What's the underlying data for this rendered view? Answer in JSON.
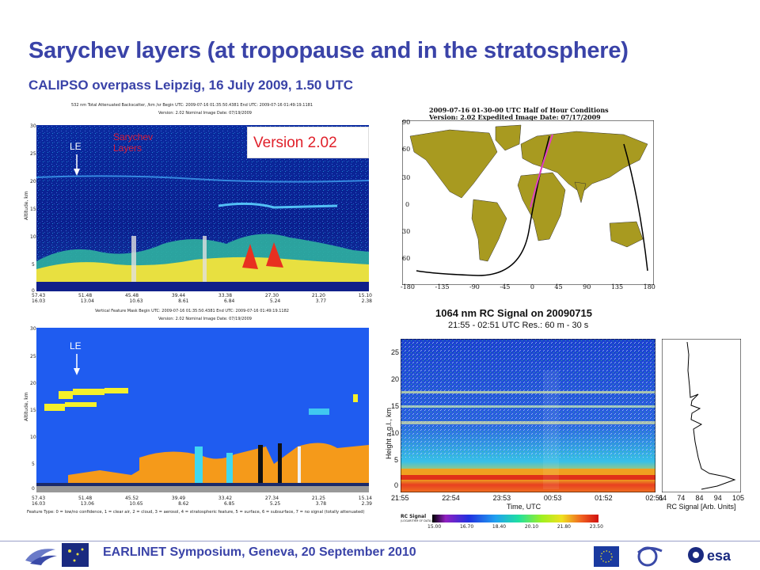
{
  "slide": {
    "title": "Sarychev layers (at tropopause and in the stratosphere)",
    "subtitle": "CALIPSO overpass Leipzig, 16 July 2009, 1.50 UTC",
    "footer": "EARLINET Symposium, Geneva, 20 September 2010"
  },
  "panel_backscatter": {
    "header1": "532 nm Total Attenuated Backscatter, /km /sr   Begin UTC: 2009-07-16 01:35:50.4381   End UTC: 2009-07-16 01:49:19.1181",
    "header2": "Version: 2.02 Nominal   Image Date: 07/19/2009",
    "le_label": "LE",
    "sarychev_line1": "Sarychev",
    "sarychev_line2": "Layers",
    "version_label": "Version 2.02",
    "y_ticks": [
      "30",
      "25",
      "20",
      "15",
      "10",
      "5",
      "0"
    ],
    "axis_title": "Altitude, km",
    "lat_ticks": [
      "57.43",
      "51.48",
      "45.48",
      "39.44",
      "33.38",
      "27.30",
      "21.20",
      "15.10"
    ],
    "lon_ticks": [
      "16.03",
      "13.04",
      "10.63",
      "8.61",
      "6.84",
      "5.24",
      "3.77",
      "2.38"
    ]
  },
  "panel_vfm": {
    "header1": "Vertical Feature Mask   Begin UTC: 2009-07-16 01:35:50.4381   End UTC: 2009-07-16 01:49:19.1182",
    "header2": "Version: 2.02 Nominal   Image Date: 07/19/2009",
    "le_label": "LE",
    "y_ticks": [
      "30",
      "25",
      "20",
      "15",
      "10",
      "5",
      "0"
    ],
    "axis_title": "Altitude, km",
    "lat_ticks": [
      "57.43",
      "51.48",
      "45.52",
      "39.49",
      "33.42",
      "27.34",
      "21.25",
      "15.14"
    ],
    "lon_ticks": [
      "16.03",
      "13.06",
      "10.65",
      "8.62",
      "6.85",
      "5.25",
      "3.78",
      "2.39"
    ],
    "legend": "Feature Type: 0 = low/no confidence, 1 = clear air, 2 = cloud, 3 = aerosol, 4 = stratospheric feature, 5 = surface, 6 = subsurface, 7 = no signal (totally attenuated)"
  },
  "panel_map": {
    "header1": "2009-07-16  01-30-00 UTC Half of Hour Conditions",
    "header2": "Version: 2.02 Expedited     Image Date: 07/17/2009",
    "lat_ticks": [
      "90",
      "60",
      "30",
      "0",
      "30",
      "60"
    ],
    "lon_ticks": [
      "-180",
      "-135",
      "-90",
      "-45",
      "0",
      "45",
      "90",
      "135",
      "180"
    ]
  },
  "panel_rc": {
    "title": "1064 nm RC Signal on  20090715",
    "subtitle": "21:55 - 02:51 UTC Res.:  60 m -  30 s",
    "ylabel": "Height a.g.l., km",
    "y_ticks": [
      "25",
      "20",
      "15",
      "10",
      "5",
      "0"
    ],
    "x_ticks": [
      "21:55",
      "22:54",
      "23:53",
      "00:53",
      "01:52",
      "02:51"
    ],
    "xlabel": "Time, UTC",
    "profile_ticks": [
      "64",
      "74",
      "84",
      "94",
      "105"
    ],
    "profile_xlabel": "RC Signal [Arb. Units]",
    "cbar_title": "RC Signal",
    "cbar_sub": "(LOGARITHM OF DATA)",
    "cbar_ticks": [
      "15.00",
      "16.70",
      "18.40",
      "20.10",
      "21.80",
      "23.50"
    ]
  },
  "colors": {
    "title_blue": "#3a43a8",
    "version_red": "#e0202a",
    "sarychev_red": "#d61b3a",
    "backscatter_bg": "#0a1f9e",
    "vfm_bg": "#1f5cf0",
    "aerosol_orange": "#f59a1a",
    "stratospheric_yellow": "#f5f02a"
  }
}
